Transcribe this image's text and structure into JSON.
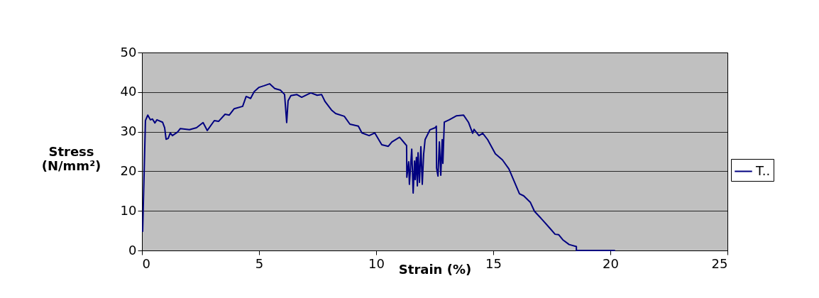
{
  "chart_data": {
    "type": "line",
    "xlabel": "Strain (%)",
    "ylabel": "Stress (N/mm²)",
    "xlim": [
      0,
      25
    ],
    "xticks": [
      0,
      5,
      10,
      15,
      20,
      25
    ],
    "ylim": [
      0,
      50
    ],
    "yticks": [
      0,
      10,
      20,
      30,
      40,
      50
    ],
    "grid": "y",
    "legend": "right",
    "marker": "none",
    "line_style": "solid",
    "series": [
      {
        "name": "T..",
        "color": "#000080",
        "x": [
          0.03,
          0.15,
          0.25,
          0.36,
          0.45,
          0.55,
          0.64,
          0.88,
          0.97,
          1.03,
          1.12,
          1.21,
          1.3,
          1.52,
          1.64,
          2.03,
          2.33,
          2.61,
          2.79,
          3.09,
          3.27,
          3.55,
          3.73,
          3.94,
          4.3,
          4.45,
          4.64,
          4.79,
          5.0,
          5.21,
          5.45,
          5.67,
          5.91,
          6.09,
          6.18,
          6.24,
          6.36,
          6.61,
          6.82,
          7.21,
          7.48,
          7.67,
          7.82,
          8.09,
          8.27,
          8.64,
          8.88,
          9.24,
          9.39,
          9.7,
          9.94,
          10.24,
          10.52,
          10.67,
          11.0,
          11.27,
          11.3,
          11.31,
          11.39,
          11.42,
          11.48,
          11.52,
          11.58,
          11.64,
          11.67,
          11.72,
          11.76,
          11.79,
          11.85,
          11.91,
          11.97,
          12.03,
          12.09,
          12.3,
          12.52,
          12.57,
          12.58,
          12.64,
          12.7,
          12.76,
          12.82,
          12.85,
          12.91,
          13.12,
          13.42,
          13.73,
          13.94,
          14.12,
          14.18,
          14.39,
          14.55,
          14.76,
          15.09,
          15.39,
          15.67,
          16.12,
          16.3,
          16.58,
          16.76,
          17.12,
          17.42,
          17.64,
          17.79,
          17.97,
          18.24,
          18.55,
          18.55,
          20.2
        ],
        "values": [
          4.7,
          32.8,
          34.2,
          33.0,
          33.2,
          32.2,
          33.0,
          32.4,
          31.0,
          28.1,
          28.3,
          29.7,
          29.0,
          29.9,
          30.8,
          30.5,
          31.0,
          32.3,
          30.3,
          32.8,
          32.6,
          34.4,
          34.2,
          35.8,
          36.4,
          38.9,
          38.4,
          40.1,
          41.2,
          41.6,
          42.1,
          40.9,
          40.5,
          39.4,
          32.3,
          37.8,
          39.1,
          39.4,
          38.7,
          39.8,
          39.2,
          39.4,
          37.6,
          35.5,
          34.6,
          33.9,
          31.9,
          31.4,
          29.7,
          29.0,
          29.7,
          26.7,
          26.3,
          27.4,
          28.6,
          26.7,
          26.5,
          18.5,
          22.4,
          16.7,
          22.0,
          25.6,
          14.5,
          22.6,
          17.9,
          23.5,
          16.3,
          24.7,
          17.2,
          26.2,
          16.7,
          24.4,
          28.0,
          30.5,
          31.0,
          31.4,
          20.8,
          18.8,
          27.4,
          19.0,
          28.0,
          22.0,
          32.4,
          33.0,
          34.0,
          34.2,
          32.4,
          29.6,
          30.6,
          29.0,
          29.6,
          28.0,
          24.4,
          22.9,
          20.6,
          14.3,
          13.8,
          12.2,
          9.9,
          7.6,
          5.6,
          4.1,
          4.0,
          2.7,
          1.5,
          1.0,
          0,
          0
        ]
      }
    ]
  }
}
